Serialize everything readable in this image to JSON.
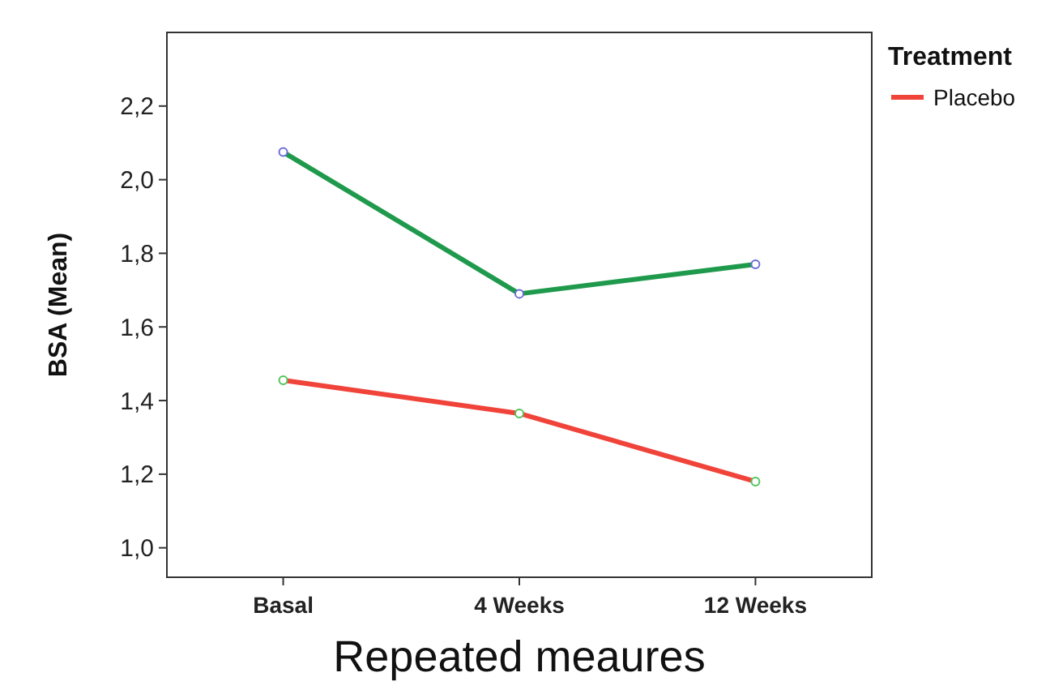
{
  "chart_data": {
    "type": "line",
    "xlabel": "Repeated meaures",
    "ylabel": "BSA (Mean)",
    "legend_title": "Treatment",
    "legend": "right",
    "marker": "circle",
    "grid": false,
    "categories": [
      "Basal",
      "4 Weeks",
      "12 Weeks"
    ],
    "series": [
      {
        "color": "#1f9a4c",
        "values": [
          2.075,
          1.69,
          1.77
        ]
      },
      {
        "name": "Placebo",
        "color": "#f0433a",
        "values": [
          1.455,
          1.365,
          1.18
        ]
      }
    ],
    "ylim": [
      0.92,
      2.4
    ],
    "yticks": [
      {
        "value": 1.0,
        "label": "1,0"
      },
      {
        "value": 1.2,
        "label": "1,2"
      },
      {
        "value": 1.4,
        "label": "1,4"
      },
      {
        "value": 1.6,
        "label": "1,6"
      },
      {
        "value": 1.8,
        "label": "1,8"
      },
      {
        "value": 2.0,
        "label": "2,0"
      },
      {
        "value": 2.2,
        "label": "2,2"
      }
    ]
  }
}
